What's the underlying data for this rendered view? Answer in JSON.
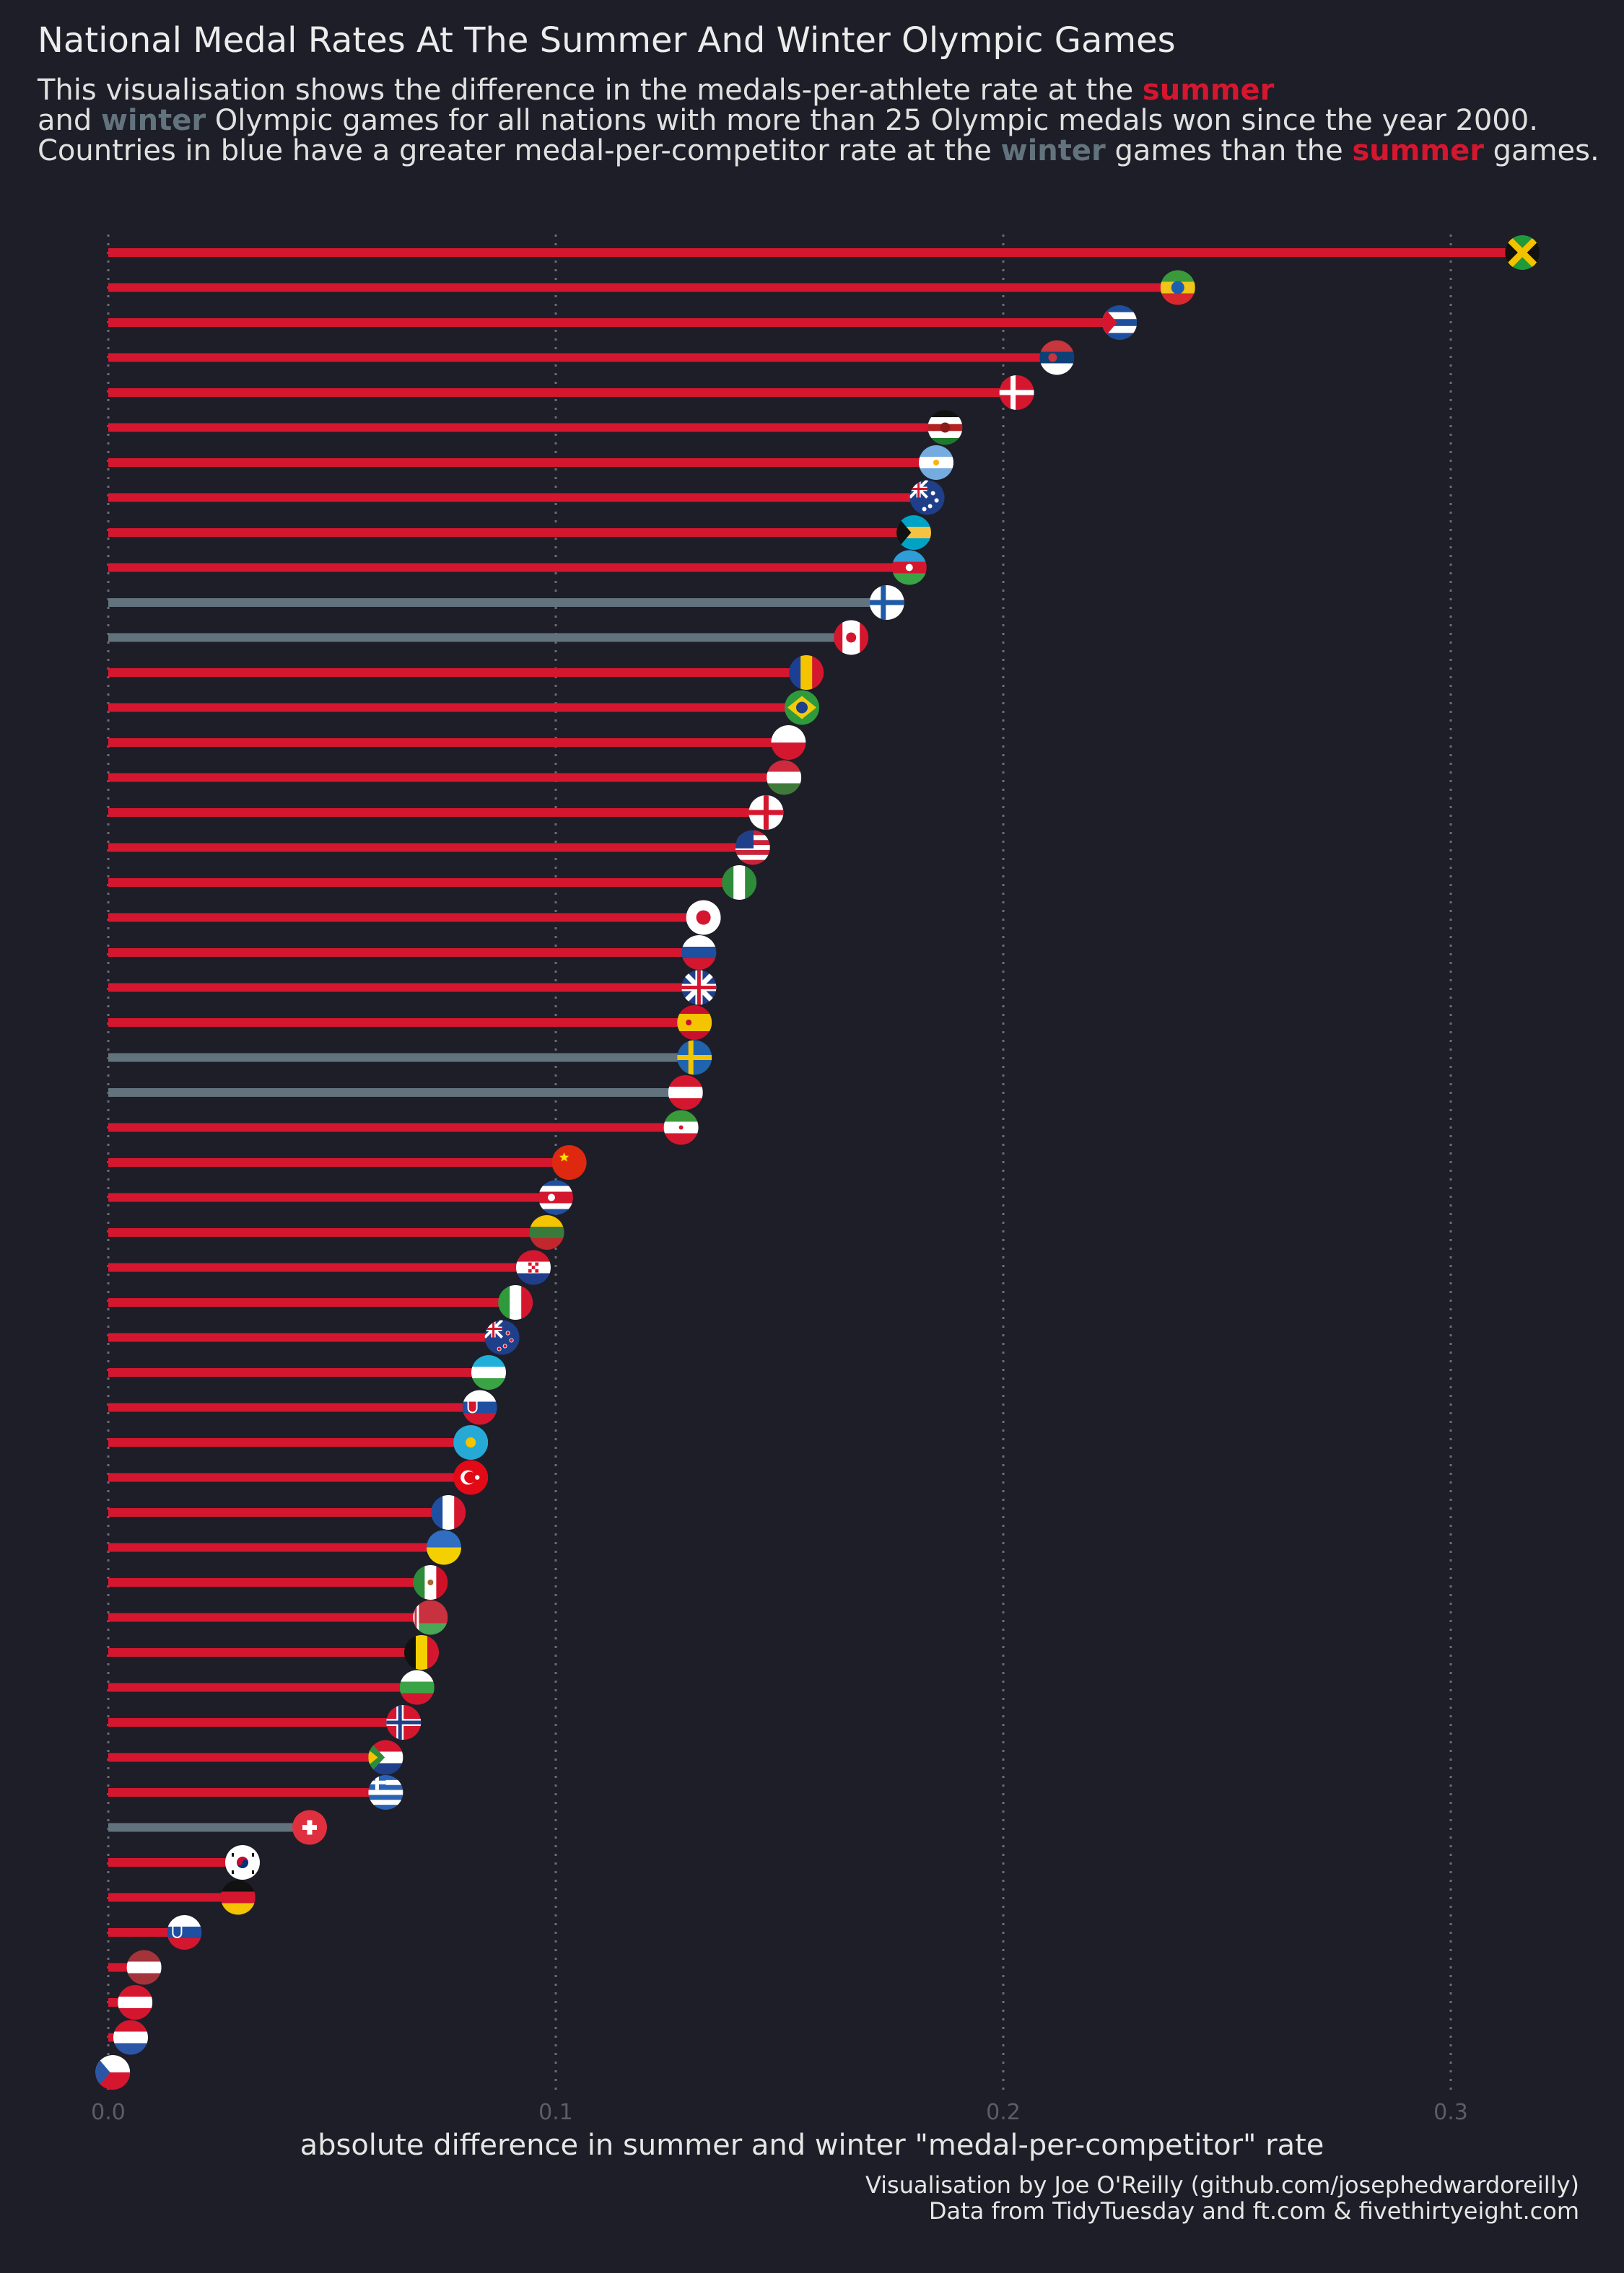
{
  "title": "National Medal Rates At The Summer And Winter Olympic Games",
  "subtitle": {
    "line1_pre": "This visualisation shows the difference in the medals-per-athlete rate at the ",
    "summer": "summer",
    "line2_pre": "and ",
    "winter": "winter",
    "line2_post": " Olympic games for all nations with more than 25 Olympic medals won since the year 2000.",
    "line3_pre": "Countries in blue have a greater medal-per-competitor rate at the ",
    "line3_mid": " games than the ",
    "line3_post": " games."
  },
  "colors": {
    "background": "#1e1e28",
    "summer": "#d4172f",
    "winter": "#62737d",
    "grid": "#6c6c74"
  },
  "xlabel": "absolute difference in summer and winter \"medal-per-competitor\" rate",
  "caption": {
    "line1": "Visualisation by Joe O'Reilly (github.com/josephedwardoreilly)",
    "line2": "Data from TidyTuesday and ft.com & fivethirtyeight.com"
  },
  "chart_data": {
    "type": "lollipop",
    "orientation": "horizontal",
    "xlim": [
      0,
      0.33
    ],
    "xticks": [
      "0.0",
      "0.1",
      "0.2",
      "0.3"
    ],
    "grid": "vertical dotted",
    "markers": "circular country flags",
    "items": [
      {
        "flag": "Jamaica",
        "value": 0.316,
        "group": "summer"
      },
      {
        "flag": "Ethiopia",
        "value": 0.239,
        "group": "summer"
      },
      {
        "flag": "Cuba",
        "value": 0.226,
        "group": "summer"
      },
      {
        "flag": "Serbia",
        "value": 0.212,
        "group": "summer"
      },
      {
        "flag": "Denmark",
        "value": 0.203,
        "group": "summer"
      },
      {
        "flag": "Kenya",
        "value": 0.187,
        "group": "summer"
      },
      {
        "flag": "Argentina",
        "value": 0.185,
        "group": "summer"
      },
      {
        "flag": "Australia",
        "value": 0.183,
        "group": "summer"
      },
      {
        "flag": "Bahamas",
        "value": 0.18,
        "group": "summer"
      },
      {
        "flag": "Azerbaijan",
        "value": 0.179,
        "group": "summer"
      },
      {
        "flag": "Finland",
        "value": 0.174,
        "group": "winter"
      },
      {
        "flag": "Canada",
        "value": 0.166,
        "group": "winter"
      },
      {
        "flag": "Romania",
        "value": 0.156,
        "group": "summer"
      },
      {
        "flag": "Brazil",
        "value": 0.155,
        "group": "summer"
      },
      {
        "flag": "Poland",
        "value": 0.152,
        "group": "summer"
      },
      {
        "flag": "Hungary",
        "value": 0.151,
        "group": "summer"
      },
      {
        "flag": "Georgia",
        "value": 0.147,
        "group": "summer"
      },
      {
        "flag": "United States",
        "value": 0.144,
        "group": "summer"
      },
      {
        "flag": "Nigeria",
        "value": 0.141,
        "group": "summer"
      },
      {
        "flag": "Japan",
        "value": 0.133,
        "group": "summer"
      },
      {
        "flag": "Russia",
        "value": 0.132,
        "group": "summer"
      },
      {
        "flag": "Great Britain",
        "value": 0.132,
        "group": "summer"
      },
      {
        "flag": "Spain",
        "value": 0.131,
        "group": "summer"
      },
      {
        "flag": "Sweden",
        "value": 0.131,
        "group": "winter"
      },
      {
        "flag": "Austria",
        "value": 0.129,
        "group": "winter"
      },
      {
        "flag": "Iran",
        "value": 0.128,
        "group": "summer"
      },
      {
        "flag": "China",
        "value": 0.103,
        "group": "summer"
      },
      {
        "flag": "North Korea",
        "value": 0.1,
        "group": "summer"
      },
      {
        "flag": "Lithuania",
        "value": 0.098,
        "group": "summer"
      },
      {
        "flag": "Croatia",
        "value": 0.095,
        "group": "summer"
      },
      {
        "flag": "Italy",
        "value": 0.091,
        "group": "summer"
      },
      {
        "flag": "New Zealand",
        "value": 0.088,
        "group": "summer"
      },
      {
        "flag": "Uzbekistan",
        "value": 0.085,
        "group": "summer"
      },
      {
        "flag": "Slovakia",
        "value": 0.083,
        "group": "summer"
      },
      {
        "flag": "Kazakhstan",
        "value": 0.081,
        "group": "summer"
      },
      {
        "flag": "Turkey",
        "value": 0.081,
        "group": "summer"
      },
      {
        "flag": "France",
        "value": 0.076,
        "group": "summer"
      },
      {
        "flag": "Ukraine",
        "value": 0.075,
        "group": "summer"
      },
      {
        "flag": "Mexico",
        "value": 0.072,
        "group": "summer"
      },
      {
        "flag": "Belarus",
        "value": 0.072,
        "group": "summer"
      },
      {
        "flag": "Belgium",
        "value": 0.07,
        "group": "summer"
      },
      {
        "flag": "Bulgaria",
        "value": 0.069,
        "group": "summer"
      },
      {
        "flag": "Norway",
        "value": 0.066,
        "group": "summer"
      },
      {
        "flag": "South Africa",
        "value": 0.062,
        "group": "summer"
      },
      {
        "flag": "Greece",
        "value": 0.062,
        "group": "summer"
      },
      {
        "flag": "Switzerland",
        "value": 0.045,
        "group": "winter"
      },
      {
        "flag": "South Korea",
        "value": 0.03,
        "group": "summer"
      },
      {
        "flag": "Germany",
        "value": 0.029,
        "group": "summer"
      },
      {
        "flag": "Slovenia",
        "value": 0.017,
        "group": "summer"
      },
      {
        "flag": "Latvia",
        "value": 0.008,
        "group": "summer"
      },
      {
        "flag": "Austria/Latvia",
        "value": 0.006,
        "group": "summer"
      },
      {
        "flag": "Netherlands",
        "value": 0.005,
        "group": "summer"
      },
      {
        "flag": "Czech Republic",
        "value": 0.001,
        "group": "summer"
      }
    ]
  }
}
